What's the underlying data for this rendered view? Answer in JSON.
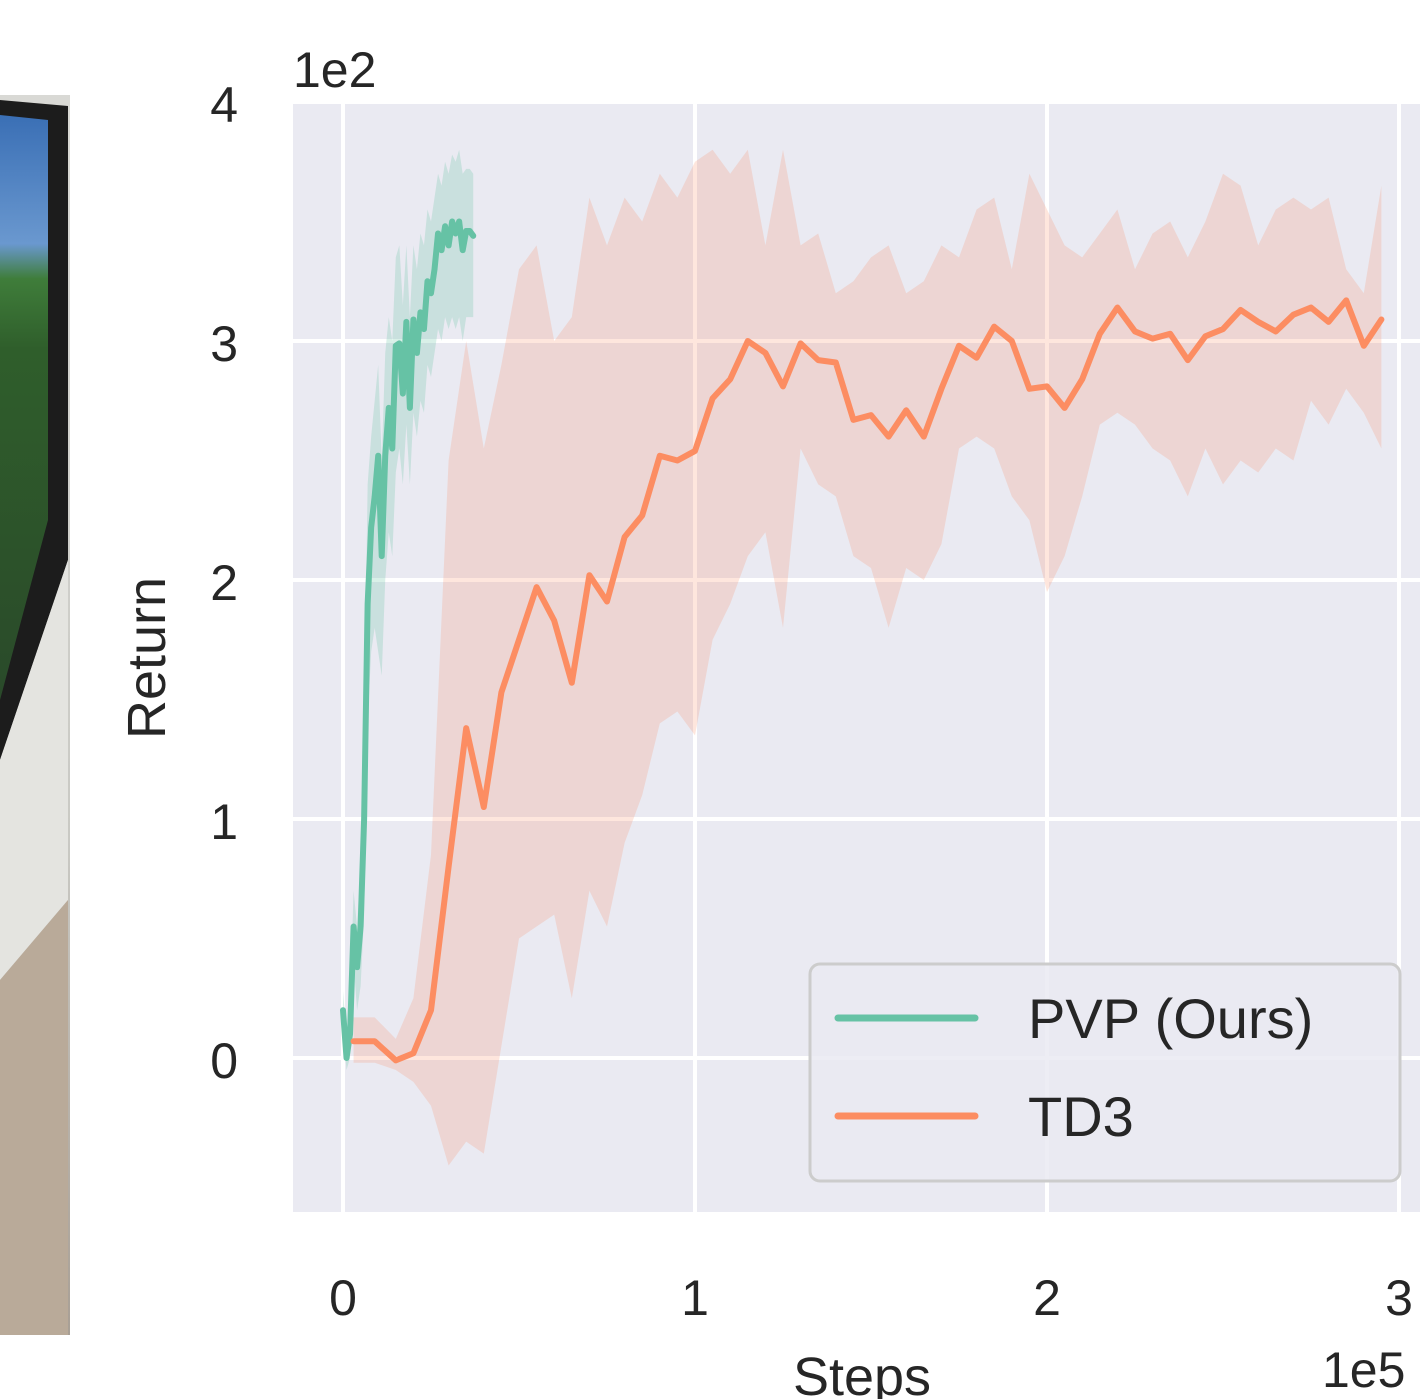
{
  "photo": {
    "description_icon": "monitor-photo"
  },
  "chart_data": {
    "type": "line",
    "xlabel": "Steps",
    "ylabel": "Return",
    "x_offset_label": "1e5",
    "y_offset_label": "1e2",
    "x_ticks": [
      "0",
      "1",
      "2",
      "3"
    ],
    "y_ticks": [
      "0",
      "1",
      "2",
      "3",
      "4"
    ],
    "xlim": [
      -0.14,
      3.1
    ],
    "ylim": [
      -0.63,
      4.0
    ],
    "grid": true,
    "legend_position": "lower-right",
    "background_color": "#eaeaf2",
    "series": [
      {
        "name": "PVP (Ours)",
        "color": "#66c2a5",
        "x": [
          0.0,
          0.01,
          0.02,
          0.03,
          0.04,
          0.05,
          0.06,
          0.07,
          0.08,
          0.09,
          0.1,
          0.11,
          0.12,
          0.13,
          0.14,
          0.15,
          0.16,
          0.17,
          0.18,
          0.19,
          0.2,
          0.21,
          0.22,
          0.23,
          0.24,
          0.25,
          0.26,
          0.27,
          0.28,
          0.29,
          0.3,
          0.31,
          0.32,
          0.33,
          0.34,
          0.35,
          0.36,
          0.37
        ],
        "y": [
          0.2,
          0.0,
          0.1,
          0.55,
          0.38,
          0.55,
          1.0,
          1.9,
          2.22,
          2.35,
          2.52,
          2.1,
          2.52,
          2.72,
          2.55,
          2.98,
          2.99,
          2.78,
          3.08,
          2.72,
          3.09,
          2.95,
          3.12,
          3.05,
          3.25,
          3.2,
          3.3,
          3.45,
          3.38,
          3.48,
          3.4,
          3.5,
          3.45,
          3.5,
          3.38,
          3.46,
          3.46,
          3.44
        ],
        "lower": [
          0.12,
          -0.05,
          0.0,
          0.4,
          0.2,
          0.3,
          0.6,
          1.4,
          1.7,
          1.8,
          1.7,
          1.6,
          2.0,
          2.2,
          2.1,
          2.45,
          2.55,
          2.4,
          2.65,
          2.4,
          2.7,
          2.6,
          2.75,
          2.7,
          2.9,
          2.85,
          2.95,
          3.05,
          3.0,
          3.1,
          3.05,
          3.1,
          3.05,
          3.1,
          3.0,
          3.1,
          3.1,
          3.1
        ],
        "upper": [
          0.28,
          0.1,
          0.2,
          0.7,
          0.55,
          0.8,
          1.4,
          2.4,
          2.6,
          2.75,
          2.9,
          2.5,
          2.95,
          3.1,
          3.0,
          3.35,
          3.4,
          3.15,
          3.4,
          3.1,
          3.4,
          3.3,
          3.45,
          3.4,
          3.55,
          3.5,
          3.6,
          3.7,
          3.65,
          3.75,
          3.7,
          3.78,
          3.75,
          3.8,
          3.7,
          3.72,
          3.72,
          3.7
        ]
      },
      {
        "name": "TD3",
        "color": "#fc8d62",
        "x": [
          0.03,
          0.09,
          0.15,
          0.2,
          0.25,
          0.3,
          0.35,
          0.4,
          0.45,
          0.5,
          0.55,
          0.6,
          0.65,
          0.7,
          0.75,
          0.8,
          0.85,
          0.9,
          0.95,
          1.0,
          1.05,
          1.1,
          1.15,
          1.2,
          1.25,
          1.3,
          1.35,
          1.4,
          1.45,
          1.5,
          1.55,
          1.6,
          1.65,
          1.7,
          1.75,
          1.8,
          1.85,
          1.9,
          1.95,
          2.0,
          2.05,
          2.1,
          2.15,
          2.2,
          2.25,
          2.3,
          2.35,
          2.4,
          2.45,
          2.5,
          2.55,
          2.6,
          2.65,
          2.7,
          2.75,
          2.8,
          2.85,
          2.9,
          2.95
        ],
        "y": [
          0.07,
          0.07,
          -0.01,
          0.02,
          0.2,
          0.8,
          1.38,
          1.05,
          1.53,
          1.75,
          1.97,
          1.83,
          1.57,
          2.02,
          1.91,
          2.18,
          2.27,
          2.52,
          2.5,
          2.54,
          2.76,
          2.84,
          3.0,
          2.95,
          2.81,
          2.99,
          2.92,
          2.91,
          2.67,
          2.69,
          2.6,
          2.71,
          2.6,
          2.8,
          2.98,
          2.93,
          3.06,
          3.0,
          2.8,
          2.81,
          2.72,
          2.84,
          3.03,
          3.14,
          3.04,
          3.01,
          3.03,
          2.92,
          3.02,
          3.05,
          3.13,
          3.08,
          3.04,
          3.11,
          3.14,
          3.08,
          3.17,
          2.98,
          3.09
        ],
        "lower": [
          -0.02,
          -0.02,
          -0.05,
          -0.1,
          -0.2,
          -0.45,
          -0.35,
          -0.4,
          0.05,
          0.5,
          0.55,
          0.6,
          0.25,
          0.7,
          0.55,
          0.9,
          1.1,
          1.4,
          1.45,
          1.35,
          1.75,
          1.9,
          2.1,
          2.2,
          1.8,
          2.55,
          2.4,
          2.35,
          2.1,
          2.05,
          1.8,
          2.05,
          2.0,
          2.15,
          2.55,
          2.6,
          2.55,
          2.35,
          2.25,
          1.95,
          2.1,
          2.35,
          2.65,
          2.7,
          2.65,
          2.55,
          2.5,
          2.35,
          2.55,
          2.4,
          2.5,
          2.45,
          2.55,
          2.5,
          2.75,
          2.65,
          2.8,
          2.7,
          2.55
        ],
        "upper": [
          0.17,
          0.17,
          0.08,
          0.25,
          0.85,
          2.5,
          3.0,
          2.55,
          2.9,
          3.3,
          3.4,
          3.0,
          3.1,
          3.6,
          3.4,
          3.6,
          3.5,
          3.7,
          3.6,
          3.75,
          3.8,
          3.7,
          3.8,
          3.4,
          3.8,
          3.4,
          3.45,
          3.2,
          3.25,
          3.35,
          3.4,
          3.2,
          3.25,
          3.4,
          3.35,
          3.55,
          3.6,
          3.3,
          3.7,
          3.55,
          3.4,
          3.35,
          3.45,
          3.55,
          3.3,
          3.45,
          3.5,
          3.35,
          3.5,
          3.7,
          3.65,
          3.4,
          3.55,
          3.6,
          3.55,
          3.6,
          3.3,
          3.2,
          3.65
        ]
      }
    ]
  }
}
